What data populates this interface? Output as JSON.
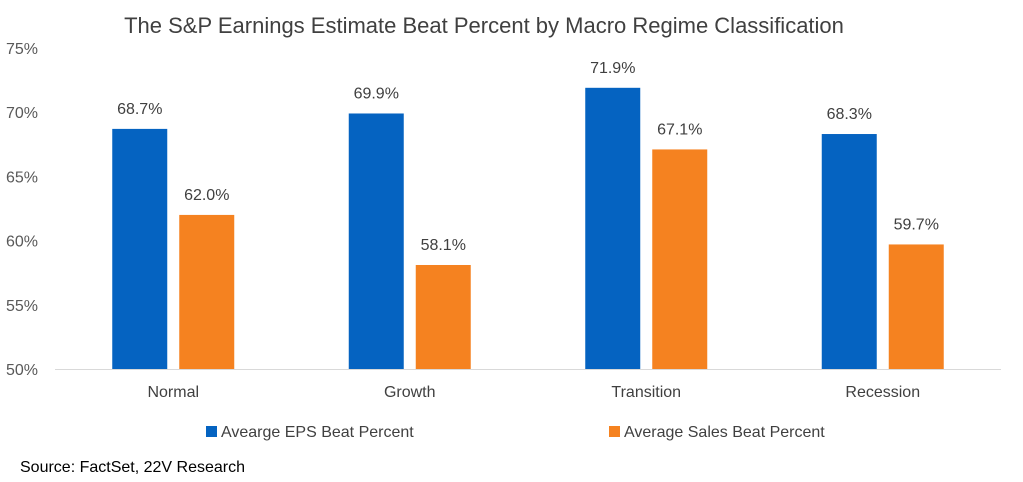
{
  "chart_data": {
    "type": "bar",
    "title": "The S&P Earnings Estimate Beat Percent by Macro Regime Classification",
    "categories": [
      "Normal",
      "Growth",
      "Transition",
      "Recession"
    ],
    "series": [
      {
        "name": "Avearge EPS Beat Percent",
        "color": "#0563C1",
        "values": [
          68.7,
          69.9,
          71.9,
          68.3
        ],
        "labels": [
          "68.7%",
          "69.9%",
          "71.9%",
          "68.3%"
        ]
      },
      {
        "name": "Average Sales Beat Percent",
        "color": "#F58220",
        "values": [
          62.0,
          58.1,
          67.1,
          59.7
        ],
        "labels": [
          "62.0%",
          "58.1%",
          "67.1%",
          "59.7%"
        ]
      }
    ],
    "ylim": [
      50,
      75
    ],
    "yticks": [
      "50%",
      "55%",
      "60%",
      "65%",
      "70%",
      "75%"
    ],
    "xlabel": "",
    "ylabel": "",
    "grid": false,
    "legend": "bottom"
  },
  "source": "Source: FactSet, 22V Research"
}
